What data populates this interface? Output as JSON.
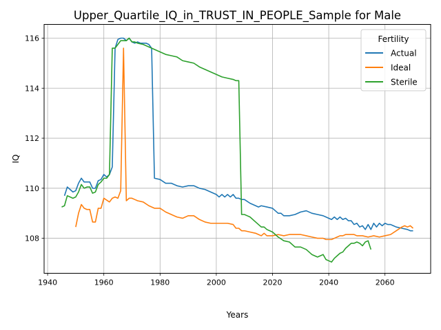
{
  "chart_data": {
    "type": "line",
    "title": "Upper_Quartile_IQ_in_TRUST_IN_PEOPLE_Sample for Male",
    "xlabel": "Years",
    "ylabel": "IQ",
    "xlim": [
      1938.75,
      2076.25
    ],
    "ylim": [
      106.6,
      116.55
    ],
    "xticks": [
      1940,
      1960,
      1980,
      2000,
      2020,
      2040,
      2060
    ],
    "yticks": [
      108,
      110,
      112,
      114,
      116
    ],
    "grid": true,
    "legend": {
      "title": "Fertility",
      "placement": "top-right"
    },
    "series": [
      {
        "name": "Actual",
        "color": "#1f77b4",
        "x": [
          1946,
          1947,
          1948,
          1949,
          1950,
          1951,
          1952,
          1953,
          1954,
          1955,
          1956,
          1957,
          1958,
          1959,
          1960,
          1961,
          1962,
          1963,
          1964,
          1965,
          1966,
          1967,
          1968,
          1969,
          1970,
          1971,
          1972,
          1973,
          1974,
          1975,
          1976,
          1977,
          1978,
          1980,
          1982,
          1984,
          1986,
          1988,
          1990,
          1992,
          1994,
          1996,
          1998,
          2000,
          2001,
          2002,
          2003,
          2004,
          2005,
          2006,
          2007,
          2008,
          2009,
          2010,
          2012,
          2014,
          2015,
          2016,
          2018,
          2020,
          2021,
          2022,
          2023,
          2024,
          2025,
          2026,
          2028,
          2030,
          2032,
          2034,
          2036,
          2038,
          2039,
          2040,
          2041,
          2042,
          2043,
          2044,
          2045,
          2046,
          2047,
          2048,
          2049,
          2050,
          2051,
          2052,
          2053,
          2054,
          2055,
          2056,
          2057,
          2058,
          2059,
          2060,
          2061,
          2062,
          2063,
          2064,
          2066,
          2068,
          2069,
          2070
        ],
        "y": [
          109.7,
          110.05,
          109.95,
          109.85,
          109.9,
          110.2,
          110.4,
          110.25,
          110.25,
          110.25,
          110.0,
          110.0,
          110.3,
          110.35,
          110.55,
          110.45,
          110.55,
          110.85,
          115.6,
          115.95,
          116.0,
          116.0,
          115.9,
          116.0,
          115.85,
          115.8,
          115.85,
          115.8,
          115.8,
          115.8,
          115.75,
          115.6,
          110.4,
          110.35,
          110.2,
          110.2,
          110.1,
          110.05,
          110.1,
          110.1,
          110.0,
          109.95,
          109.85,
          109.75,
          109.65,
          109.75,
          109.65,
          109.75,
          109.65,
          109.75,
          109.6,
          109.6,
          109.55,
          109.55,
          109.4,
          109.3,
          109.25,
          109.3,
          109.25,
          109.2,
          109.1,
          109.0,
          109.0,
          108.9,
          108.9,
          108.9,
          108.95,
          109.05,
          109.1,
          109.0,
          108.95,
          108.9,
          108.85,
          108.8,
          108.75,
          108.85,
          108.75,
          108.85,
          108.75,
          108.8,
          108.7,
          108.7,
          108.55,
          108.6,
          108.45,
          108.5,
          108.35,
          108.55,
          108.35,
          108.6,
          108.45,
          108.6,
          108.5,
          108.6,
          108.55,
          108.55,
          108.5,
          108.45,
          108.4,
          108.35,
          108.3,
          108.3
        ]
      },
      {
        "name": "Ideal",
        "color": "#ff7f0e",
        "x": [
          1950,
          1951,
          1952,
          1953,
          1954,
          1955,
          1956,
          1957,
          1958,
          1959,
          1960,
          1962,
          1963,
          1964,
          1965,
          1966,
          1967,
          1968,
          1969,
          1970,
          1971,
          1972,
          1974,
          1976,
          1978,
          1980,
          1982,
          1984,
          1986,
          1988,
          1990,
          1992,
          1994,
          1996,
          1998,
          2000,
          2002,
          2004,
          2006,
          2007,
          2008,
          2009,
          2010,
          2012,
          2014,
          2015,
          2016,
          2017,
          2018,
          2020,
          2022,
          2024,
          2026,
          2028,
          2030,
          2032,
          2034,
          2036,
          2038,
          2039,
          2040,
          2041,
          2042,
          2043,
          2044,
          2045,
          2046,
          2047,
          2048,
          2049,
          2050,
          2052,
          2054,
          2056,
          2058,
          2060,
          2062,
          2064,
          2066,
          2067,
          2068,
          2069,
          2070
        ],
        "y": [
          108.45,
          109.0,
          109.35,
          109.2,
          109.15,
          109.15,
          108.65,
          108.65,
          109.2,
          109.2,
          109.6,
          109.45,
          109.6,
          109.65,
          109.6,
          109.9,
          115.6,
          109.5,
          109.6,
          109.6,
          109.55,
          109.5,
          109.45,
          109.3,
          109.2,
          109.2,
          109.05,
          108.95,
          108.85,
          108.8,
          108.9,
          108.9,
          108.75,
          108.65,
          108.6,
          108.6,
          108.6,
          108.6,
          108.55,
          108.4,
          108.4,
          108.3,
          108.3,
          108.25,
          108.2,
          108.15,
          108.1,
          108.2,
          108.1,
          108.1,
          108.15,
          108.1,
          108.15,
          108.15,
          108.15,
          108.1,
          108.05,
          108.0,
          108.0,
          107.95,
          107.95,
          107.95,
          108.0,
          108.05,
          108.1,
          108.1,
          108.15,
          108.15,
          108.15,
          108.15,
          108.1,
          108.1,
          108.05,
          108.1,
          108.05,
          108.1,
          108.15,
          108.3,
          108.45,
          108.5,
          108.45,
          108.5,
          108.4
        ]
      },
      {
        "name": "Sterile",
        "color": "#2ca02c",
        "x": [
          1945,
          1946,
          1947,
          1948,
          1949,
          1950,
          1951,
          1952,
          1953,
          1954,
          1955,
          1956,
          1957,
          1958,
          1959,
          1960,
          1961,
          1962,
          1963,
          1964,
          1965,
          1966,
          1967,
          1968,
          1969,
          1970,
          1971,
          1972,
          1974,
          1976,
          1978,
          1980,
          1982,
          1984,
          1986,
          1988,
          1990,
          1992,
          1994,
          1996,
          1998,
          2000,
          2002,
          2004,
          2006,
          2007,
          2008,
          2009,
          2010,
          2011,
          2012,
          2014,
          2016,
          2017,
          2018,
          2020,
          2022,
          2024,
          2026,
          2028,
          2030,
          2032,
          2034,
          2036,
          2038,
          2039,
          2040,
          2041,
          2042,
          2043,
          2044,
          2045,
          2046,
          2047,
          2048,
          2049,
          2050,
          2051,
          2052,
          2053,
          2054,
          2055
        ],
        "y": [
          109.25,
          109.3,
          109.7,
          109.65,
          109.6,
          109.65,
          109.85,
          110.15,
          110.0,
          110.05,
          110.05,
          109.8,
          109.85,
          110.15,
          110.25,
          110.4,
          110.4,
          110.55,
          115.6,
          115.6,
          115.75,
          115.9,
          115.9,
          115.9,
          116.0,
          115.85,
          115.85,
          115.8,
          115.75,
          115.65,
          115.55,
          115.45,
          115.35,
          115.3,
          115.25,
          115.1,
          115.05,
          115.0,
          114.85,
          114.75,
          114.65,
          114.55,
          114.45,
          114.4,
          114.35,
          114.3,
          114.3,
          108.95,
          108.95,
          108.9,
          108.85,
          108.65,
          108.45,
          108.45,
          108.35,
          108.25,
          108.05,
          107.9,
          107.85,
          107.65,
          107.65,
          107.55,
          107.35,
          107.25,
          107.35,
          107.15,
          107.1,
          107.05,
          107.2,
          107.3,
          107.4,
          107.45,
          107.6,
          107.7,
          107.8,
          107.8,
          107.85,
          107.8,
          107.7,
          107.85,
          107.9,
          107.55
        ]
      }
    ]
  }
}
